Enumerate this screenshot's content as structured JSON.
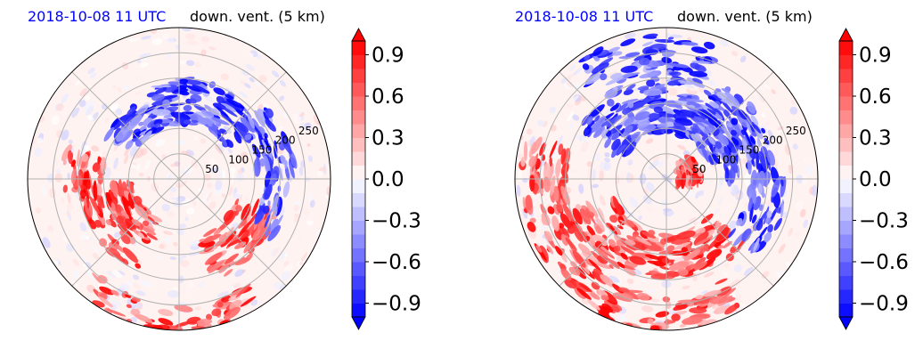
{
  "chart_data": [
    {
      "type": "heatmap",
      "projection": "polar",
      "title_left": "2018-10-08 11 UTC",
      "title_right": "down. vent. (5 km)",
      "radial_ticks": [
        "50",
        "100",
        "150",
        "200",
        "250"
      ],
      "radial_tick_values": [
        50,
        100,
        150,
        200,
        250
      ],
      "r_max": 300,
      "radial_grid_spacing_deg": 45,
      "grid": true,
      "colorbar": {
        "ticks": [
          "−0.9",
          "−0.6",
          "−0.3",
          "0.0",
          "0.3",
          "0.6",
          "0.9"
        ],
        "tick_values": [
          -0.9,
          -0.6,
          -0.3,
          0.0,
          0.3,
          0.6,
          0.9
        ],
        "range": [
          -1.0,
          1.0
        ],
        "extend": "both",
        "cmap": "bwr"
      },
      "regions": [
        {
          "kind": "positive",
          "theta_deg": [
            185,
            245
          ],
          "r": [
            90,
            200
          ]
        },
        {
          "kind": "positive",
          "theta_deg": [
            290,
            340
          ],
          "r": [
            120,
            210
          ]
        },
        {
          "kind": "positive",
          "theta_deg": [
            165,
            190
          ],
          "r": [
            150,
            230
          ]
        },
        {
          "kind": "positive",
          "theta_deg": [
            230,
            300
          ],
          "r": [
            250,
            300
          ]
        },
        {
          "kind": "negative",
          "theta_deg": [
            30,
            110
          ],
          "r": [
            110,
            200
          ]
        },
        {
          "kind": "negative",
          "theta_deg": [
            0,
            40
          ],
          "r": [
            150,
            230
          ]
        },
        {
          "kind": "negative",
          "theta_deg": [
            330,
            360
          ],
          "r": [
            170,
            220
          ]
        },
        {
          "kind": "negative",
          "theta_deg": [
            110,
            150
          ],
          "r": [
            100,
            170
          ]
        }
      ]
    },
    {
      "type": "heatmap",
      "projection": "polar",
      "title_left": "2018-10-08 11 UTC",
      "title_right": "down. vent. (5 km)",
      "radial_ticks": [
        "50",
        "100",
        "150",
        "200",
        "250"
      ],
      "radial_tick_values": [
        50,
        100,
        150,
        200,
        250
      ],
      "r_max": 300,
      "radial_grid_spacing_deg": 45,
      "grid": true,
      "colorbar": {
        "ticks": [
          "−0.9",
          "−0.6",
          "−0.3",
          "0.0",
          "0.3",
          "0.6",
          "0.9"
        ],
        "tick_values": [
          -0.9,
          -0.6,
          -0.3,
          0.0,
          0.3,
          0.6,
          0.9
        ],
        "range": [
          -1.0,
          1.0
        ],
        "extend": "both",
        "cmap": "bwr"
      },
      "regions": [
        {
          "kind": "positive",
          "theta_deg": [
            200,
            320
          ],
          "r": [
            110,
            200
          ]
        },
        {
          "kind": "positive",
          "theta_deg": [
            160,
            240
          ],
          "r": [
            200,
            290
          ]
        },
        {
          "kind": "positive",
          "theta_deg": [
            350,
            400
          ],
          "r": [
            20,
            70
          ]
        },
        {
          "kind": "positive",
          "theta_deg": [
            240,
            300
          ],
          "r": [
            230,
            300
          ]
        },
        {
          "kind": "negative",
          "theta_deg": [
            20,
            150
          ],
          "r": [
            90,
            200
          ]
        },
        {
          "kind": "negative",
          "theta_deg": [
            0,
            60
          ],
          "r": [
            120,
            220
          ]
        },
        {
          "kind": "negative",
          "theta_deg": [
            70,
            130
          ],
          "r": [
            200,
            290
          ]
        },
        {
          "kind": "negative",
          "theta_deg": [
            320,
            360
          ],
          "r": [
            160,
            240
          ]
        }
      ]
    }
  ],
  "colors": {
    "title_date": "#0000ff",
    "positive": "#ff0000",
    "negative": "#0000ff",
    "neutral": "#ffffff",
    "grid": "#b0b0b0",
    "outline": "#000000"
  }
}
